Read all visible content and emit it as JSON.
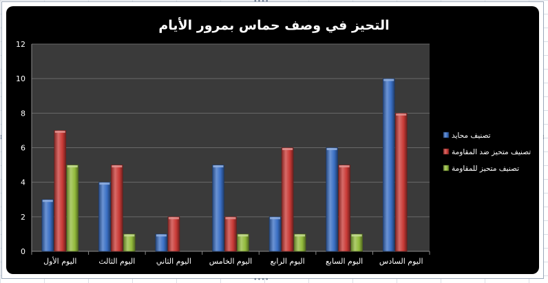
{
  "chart_data": {
    "type": "bar",
    "title": "التحيز في وصف حماس بمرور الأيام",
    "xlabel": "",
    "ylabel": "",
    "categories": [
      "اليوم الأول",
      "اليوم الثالث",
      "اليوم الثاني",
      "اليوم الخامس",
      "اليوم الرابع",
      "اليوم السابع",
      "اليوم السادس"
    ],
    "series": [
      {
        "name": "تصنيف محايد",
        "color": "#3a6fc4",
        "values": [
          3,
          4,
          1,
          5,
          2,
          6,
          10
        ]
      },
      {
        "name": "تصنيف متحيز ضد المقاومة",
        "color": "#c93a36",
        "values": [
          7,
          5,
          2,
          2,
          6,
          5,
          8
        ]
      },
      {
        "name": "تصنيف متحيز للمقاومة",
        "color": "#93bb3c",
        "values": [
          5,
          1,
          0,
          1,
          1,
          1,
          0
        ]
      }
    ],
    "ylim": [
      0,
      12
    ],
    "yticks": [
      0,
      2,
      4,
      6,
      8,
      10,
      12
    ],
    "grid": true,
    "legend_position": "right",
    "colors": {
      "background": "#000000",
      "plot_area": "#3a3a3a",
      "text": "#ffffff",
      "gridline": "#6a6a6a"
    }
  }
}
